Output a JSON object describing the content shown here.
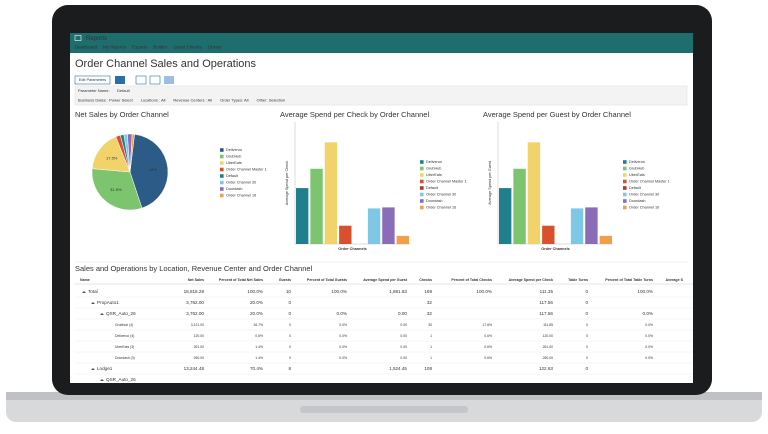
{
  "app": {
    "title": "Reports",
    "nav": [
      "Dashboard",
      "My Reports",
      "Exports",
      "Builder",
      "Guest Checks",
      "Library"
    ]
  },
  "page": {
    "title": "Order Channel Sales and Operations",
    "edit_button": "Edit Parameters",
    "parameter_label": "Parameter Name:",
    "parameter_value": "Default",
    "filters": [
      "Business Dates : Power Select",
      "Locations : All",
      "Revenue Centers : All",
      "Order Types: All",
      "Other: Selection"
    ]
  },
  "chart_data": [
    {
      "type": "pie",
      "title": "Net Sales by Order Channel",
      "categories": [
        "Deliveroo",
        "GrubHub",
        "UberEats",
        "Order Channel Master 1",
        "Default",
        "Order Channel 30",
        "Doordash",
        "Order Channel 16"
      ],
      "values": [
        43,
        31.5,
        17.5,
        2,
        1.5,
        1.5,
        2,
        1
      ],
      "value_labels": [
        "43%",
        "31.5%",
        "17.5%",
        null,
        null,
        null,
        null,
        null
      ],
      "colors": [
        "#2b5b86",
        "#7cc46e",
        "#f2d36b",
        "#d9502e",
        "#1f7f8c",
        "#7fc7e6",
        "#8a6cb8",
        "#f0a04b"
      ]
    },
    {
      "type": "bar",
      "title": "Average Spend per Check by Order Channel",
      "y_label": "Average Spend per Check",
      "x_label": "Order Channels",
      "categories": [
        "Deliveroo",
        "GrubHub",
        "UberEats",
        "Order Channel Master 1",
        "Default",
        "Order Channel 30",
        "Doordash",
        "Order Channel 16"
      ],
      "values": [
        55,
        74,
        100,
        18,
        null,
        35,
        36,
        8
      ],
      "colors": [
        "#1f7f8c",
        "#7cc46e",
        "#f2d36b",
        "#d9502e",
        "#a33b2a",
        "#7fc7e6",
        "#8a6cb8",
        "#f0a04b"
      ],
      "ylim": [
        0,
        120
      ]
    },
    {
      "type": "bar",
      "title": "Average Spend per Guest by Order Channel",
      "y_label": "Average Spend per Guest",
      "x_label": "Order Channels",
      "categories": [
        "Deliveroo",
        "GrubHub",
        "UberEats",
        "Order Channel Master 1",
        "Default",
        "Order Channel 30",
        "Doordash",
        "Order Channel 16"
      ],
      "values": [
        55,
        74,
        100,
        18,
        null,
        35,
        36,
        8
      ],
      "colors": [
        "#1f7f8c",
        "#7cc46e",
        "#f2d36b",
        "#d9502e",
        "#a33b2a",
        "#7fc7e6",
        "#8a6cb8",
        "#f0a04b"
      ],
      "ylim": [
        0,
        120
      ]
    }
  ],
  "table": {
    "title": "Sales and Operations by Location, Revenue Center and Order Channel",
    "columns": [
      "Name",
      "Net Sales",
      "Percent of Total Net Sales",
      "Guests",
      "Percent of Total Guests",
      "Average Spend per Guest",
      "Checks",
      "Percent of Total Checks",
      "Average Spend per Check",
      "Table Turns",
      "Percent of Total Table Turns",
      "Average S"
    ],
    "rows": [
      [
        "Total",
        "18,818.28",
        "100.0%",
        "10",
        "100.0%",
        "1,881.83",
        "169",
        "100.0%",
        "111.35",
        "0",
        "100.0%",
        null
      ],
      [
        "PropAuto1",
        "3,762.00",
        "20.0%",
        "0",
        null,
        null,
        "32",
        null,
        "117.56",
        "0",
        null,
        null
      ],
      [
        "QSR_Auto_26",
        "3,762.00",
        "20.0%",
        "0",
        "0.0%",
        "0.00",
        "32",
        null,
        "117.56",
        "0",
        "0.0%",
        null
      ],
      [
        "Grubhub (4)",
        "3,121.00",
        "16.7%",
        "0",
        "0.0%",
        "0.00",
        "30",
        "17.8%",
        "111.85",
        "0",
        "0.0%",
        null
      ],
      [
        "Deliveroo (4)",
        "120.00",
        "0.6%",
        "0",
        "0.0%",
        "0.00",
        "1",
        "0.6%",
        "120.00",
        "0",
        "0.0%",
        null
      ],
      [
        "UberEats (3)",
        "261.00",
        "1.4%",
        "0",
        "0.0%",
        "0.00",
        "1",
        "0.6%",
        "261.00",
        "0",
        "0.0%",
        null
      ],
      [
        "Doordash (3)",
        "260.00",
        "1.4%",
        "0",
        "0.0%",
        "0.00",
        "1",
        "0.6%",
        "260.00",
        "0",
        "0.0%",
        null
      ],
      [
        "Lodge1",
        "13,244.48",
        "70.4%",
        "8",
        null,
        "1,524.45",
        "108",
        null,
        "122.63",
        "0",
        null,
        null
      ],
      [
        "QSR_Auto_26",
        null,
        null,
        null,
        null,
        null,
        null,
        null,
        null,
        null,
        null,
        null
      ]
    ]
  }
}
